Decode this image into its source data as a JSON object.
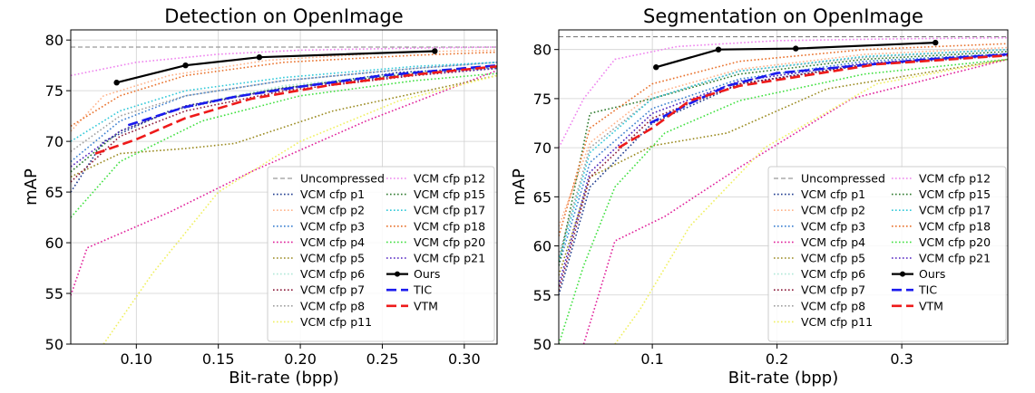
{
  "chart_data": [
    {
      "type": "line",
      "title": "Detection on OpenImage",
      "xlabel": "Bit-rate (bpp)",
      "ylabel": "mAP",
      "xlim": [
        0.06,
        0.32
      ],
      "ylim": [
        50,
        81
      ],
      "xticks": [
        0.1,
        0.15,
        0.2,
        0.25,
        0.3
      ],
      "xtick_labels": [
        "0.10",
        "0.15",
        "0.20",
        "0.25",
        "0.30"
      ],
      "yticks": [
        50,
        55,
        60,
        65,
        70,
        75,
        80
      ],
      "ytick_labels": [
        "50",
        "55",
        "60",
        "65",
        "70",
        "75",
        "80"
      ],
      "grid": true,
      "legend_position": "lower-right",
      "series": [
        {
          "name": "Uncompressed",
          "color": "#808080",
          "style": "dashed",
          "x": [
            0.06,
            0.32
          ],
          "y": [
            79.3,
            79.3
          ]
        },
        {
          "name": "VCM cfp p1",
          "color": "#1f3b8f",
          "style": "dotted",
          "x": [
            0.06,
            0.08,
            0.12,
            0.18,
            0.26,
            0.32
          ],
          "y": [
            65.0,
            70.0,
            73.0,
            75.0,
            76.8,
            77.3
          ]
        },
        {
          "name": "VCM cfp p2",
          "color": "#ffb38a",
          "style": "dotted",
          "x": [
            0.06,
            0.08,
            0.12,
            0.18,
            0.26,
            0.32
          ],
          "y": [
            71.0,
            74.5,
            76.5,
            78.0,
            78.8,
            79.0
          ]
        },
        {
          "name": "VCM cfp p3",
          "color": "#3a7fd0",
          "style": "dotted",
          "x": [
            0.06,
            0.09,
            0.13,
            0.19,
            0.27,
            0.32
          ],
          "y": [
            68.0,
            72.0,
            74.5,
            76.0,
            77.2,
            77.8
          ]
        },
        {
          "name": "VCM cfp p4",
          "color": "#e0209a",
          "style": "dotted",
          "x": [
            0.06,
            0.07,
            0.12,
            0.17,
            0.24,
            0.32
          ],
          "y": [
            54.8,
            59.5,
            63.0,
            67.0,
            72.0,
            77.0
          ]
        },
        {
          "name": "VCM cfp p5",
          "color": "#9a8a20",
          "style": "dotted",
          "x": [
            0.06,
            0.09,
            0.13,
            0.16,
            0.22,
            0.32
          ],
          "y": [
            66.5,
            68.8,
            69.3,
            69.8,
            73.0,
            76.5
          ]
        },
        {
          "name": "VCM cfp p6",
          "color": "#b0e8d8",
          "style": "dotted",
          "x": [
            0.06,
            0.09,
            0.13,
            0.19,
            0.27,
            0.32
          ],
          "y": [
            67.0,
            71.0,
            73.5,
            75.5,
            76.8,
            77.3
          ]
        },
        {
          "name": "VCM cfp p7",
          "color": "#8b1a3a",
          "style": "dotted",
          "x": [
            0.06,
            0.09,
            0.13,
            0.19,
            0.27,
            0.32
          ],
          "y": [
            66.0,
            70.5,
            73.0,
            75.0,
            76.5,
            77.2
          ]
        },
        {
          "name": "VCM cfp p8",
          "color": "#a0a0a0",
          "style": "dotted",
          "x": [
            0.06,
            0.09,
            0.13,
            0.19,
            0.27,
            0.32
          ],
          "y": [
            69.0,
            72.5,
            74.5,
            76.0,
            77.2,
            77.8
          ]
        },
        {
          "name": "VCM cfp p11",
          "color": "#f0f060",
          "style": "dotted",
          "x": [
            0.08,
            0.11,
            0.15,
            0.2,
            0.26,
            0.32
          ],
          "y": [
            50.0,
            57.0,
            65.0,
            70.0,
            74.0,
            76.5
          ]
        },
        {
          "name": "VCM cfp p12",
          "color": "#ee82ee",
          "style": "dotted",
          "x": [
            0.06,
            0.1,
            0.15,
            0.2,
            0.27,
            0.32
          ],
          "y": [
            76.5,
            77.8,
            78.6,
            79.0,
            79.2,
            79.3
          ]
        },
        {
          "name": "VCM cfp p15",
          "color": "#2e7a2e",
          "style": "dotted",
          "x": [
            0.06,
            0.09,
            0.13,
            0.19,
            0.27,
            0.32
          ],
          "y": [
            67.0,
            71.0,
            73.5,
            75.3,
            76.7,
            77.2
          ]
        },
        {
          "name": "VCM cfp p17",
          "color": "#30c8d8",
          "style": "dotted",
          "x": [
            0.06,
            0.09,
            0.13,
            0.19,
            0.27,
            0.32
          ],
          "y": [
            70.0,
            73.0,
            75.0,
            76.3,
            77.4,
            77.8
          ]
        },
        {
          "name": "VCM cfp p18",
          "color": "#e8702a",
          "style": "dotted",
          "x": [
            0.06,
            0.09,
            0.13,
            0.19,
            0.27,
            0.32
          ],
          "y": [
            71.5,
            74.5,
            76.5,
            77.8,
            78.5,
            78.8
          ]
        },
        {
          "name": "VCM cfp p20",
          "color": "#40e040",
          "style": "dotted",
          "x": [
            0.06,
            0.09,
            0.14,
            0.2,
            0.27,
            0.32
          ],
          "y": [
            62.5,
            68.0,
            72.0,
            74.5,
            76.0,
            76.7
          ]
        },
        {
          "name": "VCM cfp p21",
          "color": "#5020c0",
          "style": "dotted",
          "x": [
            0.06,
            0.09,
            0.13,
            0.19,
            0.27,
            0.32
          ],
          "y": [
            67.5,
            71.0,
            73.5,
            75.2,
            76.6,
            77.2
          ]
        },
        {
          "name": "Ours",
          "color": "#000000",
          "style": "solid",
          "marker": true,
          "x": [
            0.088,
            0.13,
            0.175,
            0.282
          ],
          "y": [
            75.8,
            77.5,
            78.3,
            78.9
          ]
        },
        {
          "name": "TIC",
          "color": "#1a1aee",
          "style": "longdash",
          "x": [
            0.095,
            0.13,
            0.16,
            0.2,
            0.25,
            0.32
          ],
          "y": [
            71.6,
            73.4,
            74.4,
            75.4,
            76.5,
            77.5
          ]
        },
        {
          "name": "VTM",
          "color": "#ee1a1a",
          "style": "longdash",
          "x": [
            0.075,
            0.1,
            0.13,
            0.17,
            0.22,
            0.27,
            0.32
          ],
          "y": [
            68.8,
            70.2,
            72.3,
            74.2,
            75.6,
            76.6,
            77.4
          ]
        }
      ]
    },
    {
      "type": "line",
      "title": "Segmentation on OpenImage",
      "xlabel": "Bit-rate (bpp)",
      "ylabel": "mAP",
      "xlim": [
        0.025,
        0.385
      ],
      "ylim": [
        50,
        82
      ],
      "xticks": [
        0.1,
        0.2,
        0.3
      ],
      "xtick_labels": [
        "0.1",
        "0.2",
        "0.3"
      ],
      "yticks": [
        50,
        55,
        60,
        65,
        70,
        75,
        80
      ],
      "ytick_labels": [
        "50",
        "55",
        "60",
        "65",
        "70",
        "75",
        "80"
      ],
      "grid": true,
      "legend_position": "lower-right",
      "series": [
        {
          "name": "Uncompressed",
          "color": "#808080",
          "style": "dashed",
          "x": [
            0.025,
            0.385
          ],
          "y": [
            81.3,
            81.3
          ]
        },
        {
          "name": "VCM cfp p1",
          "color": "#1f3b8f",
          "style": "dotted",
          "x": [
            0.025,
            0.05,
            0.1,
            0.17,
            0.27,
            0.385
          ],
          "y": [
            55.0,
            66.0,
            72.5,
            76.5,
            78.5,
            79.5
          ]
        },
        {
          "name": "VCM cfp p2",
          "color": "#ffb38a",
          "style": "dotted",
          "x": [
            0.025,
            0.05,
            0.1,
            0.17,
            0.27,
            0.385
          ],
          "y": [
            62.0,
            70.5,
            75.5,
            78.0,
            79.5,
            80.2
          ]
        },
        {
          "name": "VCM cfp p3",
          "color": "#3a7fd0",
          "style": "dotted",
          "x": [
            0.025,
            0.05,
            0.1,
            0.17,
            0.27,
            0.385
          ],
          "y": [
            58.0,
            68.5,
            74.0,
            77.0,
            78.8,
            79.6
          ]
        },
        {
          "name": "VCM cfp p4",
          "color": "#e0209a",
          "style": "dotted",
          "x": [
            0.045,
            0.07,
            0.11,
            0.17,
            0.26,
            0.385
          ],
          "y": [
            50.0,
            60.5,
            63.0,
            68.0,
            75.0,
            79.0
          ]
        },
        {
          "name": "VCM cfp p5",
          "color": "#9a8a20",
          "style": "dotted",
          "x": [
            0.025,
            0.05,
            0.1,
            0.16,
            0.24,
            0.385
          ],
          "y": [
            57.0,
            67.0,
            70.2,
            71.5,
            76.0,
            79.0
          ]
        },
        {
          "name": "VCM cfp p6",
          "color": "#b0e8d8",
          "style": "dotted",
          "x": [
            0.025,
            0.05,
            0.1,
            0.17,
            0.27,
            0.385
          ],
          "y": [
            56.0,
            67.5,
            73.5,
            76.8,
            78.6,
            79.5
          ]
        },
        {
          "name": "VCM cfp p7",
          "color": "#8b1a3a",
          "style": "dotted",
          "x": [
            0.025,
            0.05,
            0.1,
            0.17,
            0.27,
            0.385
          ],
          "y": [
            55.5,
            67.0,
            73.0,
            76.5,
            78.4,
            79.4
          ]
        },
        {
          "name": "VCM cfp p8",
          "color": "#a0a0a0",
          "style": "dotted",
          "x": [
            0.025,
            0.05,
            0.1,
            0.17,
            0.27,
            0.385
          ],
          "y": [
            59.0,
            70.0,
            75.0,
            77.8,
            79.2,
            80.0
          ]
        },
        {
          "name": "VCM cfp p11",
          "color": "#f0f060",
          "style": "dotted",
          "x": [
            0.07,
            0.09,
            0.13,
            0.19,
            0.28,
            0.385
          ],
          "y": [
            50.0,
            53.5,
            62.0,
            70.0,
            76.5,
            79.0
          ]
        },
        {
          "name": "VCM cfp p12",
          "color": "#ee82ee",
          "style": "dotted",
          "x": [
            0.025,
            0.045,
            0.07,
            0.12,
            0.2,
            0.3,
            0.385
          ],
          "y": [
            70.0,
            75.0,
            79.0,
            80.3,
            80.9,
            81.1,
            81.2
          ]
        },
        {
          "name": "VCM cfp p15",
          "color": "#2e7a2e",
          "style": "dotted",
          "x": [
            0.025,
            0.05,
            0.1,
            0.17,
            0.27,
            0.385
          ],
          "y": [
            58.0,
            73.5,
            75.0,
            77.5,
            79.0,
            79.8
          ]
        },
        {
          "name": "VCM cfp p17",
          "color": "#30c8d8",
          "style": "dotted",
          "x": [
            0.025,
            0.05,
            0.1,
            0.17,
            0.27,
            0.385
          ],
          "y": [
            58.5,
            69.5,
            75.0,
            77.8,
            79.3,
            80.0
          ]
        },
        {
          "name": "VCM cfp p18",
          "color": "#e8702a",
          "style": "dotted",
          "x": [
            0.025,
            0.05,
            0.1,
            0.17,
            0.27,
            0.385
          ],
          "y": [
            61.0,
            72.0,
            76.5,
            78.8,
            80.0,
            80.6
          ]
        },
        {
          "name": "VCM cfp p20",
          "color": "#40e040",
          "style": "dotted",
          "x": [
            0.025,
            0.045,
            0.07,
            0.11,
            0.17,
            0.27,
            0.385
          ],
          "y": [
            50.0,
            58.0,
            66.0,
            71.5,
            74.8,
            77.5,
            79.0
          ]
        },
        {
          "name": "VCM cfp p21",
          "color": "#5020c0",
          "style": "dotted",
          "x": [
            0.025,
            0.05,
            0.1,
            0.17,
            0.27,
            0.385
          ],
          "y": [
            56.0,
            67.5,
            73.5,
            76.8,
            78.6,
            79.5
          ]
        },
        {
          "name": "Ours",
          "color": "#000000",
          "style": "solid",
          "marker": true,
          "x": [
            0.103,
            0.153,
            0.215,
            0.327
          ],
          "y": [
            78.2,
            80.0,
            80.1,
            80.7
          ]
        },
        {
          "name": "TIC",
          "color": "#1a1aee",
          "style": "longdash",
          "x": [
            0.098,
            0.13,
            0.16,
            0.2,
            0.26,
            0.32,
            0.385
          ],
          "y": [
            72.5,
            74.5,
            76.3,
            77.6,
            78.3,
            79.0,
            79.5
          ]
        },
        {
          "name": "VTM",
          "color": "#ee1a1a",
          "style": "longdash",
          "x": [
            0.073,
            0.1,
            0.13,
            0.17,
            0.22,
            0.28,
            0.34,
            0.385
          ],
          "y": [
            70.0,
            72.0,
            74.8,
            76.3,
            77.3,
            78.5,
            79.0,
            79.4
          ]
        }
      ]
    }
  ]
}
